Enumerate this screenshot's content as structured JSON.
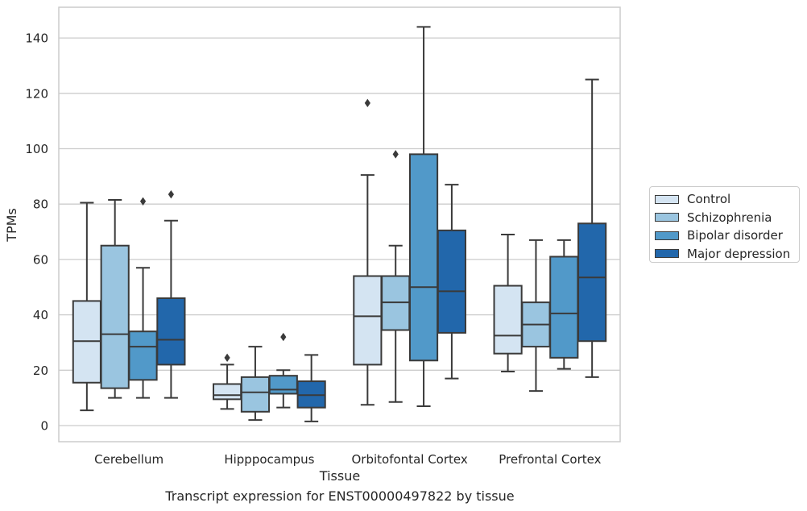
{
  "chart_data": {
    "type": "box",
    "xlabel": "Tissue",
    "ylabel": "TPMs",
    "caption": "Transcript expression for ENST00000497822 by tissue",
    "ylim": [
      -5,
      151
    ],
    "yticks": [
      0,
      20,
      40,
      60,
      80,
      100,
      120,
      140
    ],
    "grid": true,
    "legend_position": "right",
    "categories": [
      "Cerebellum",
      "Hipppocampus",
      "Orbitofontal Cortex",
      "Prefrontal Cortex"
    ],
    "series": [
      {
        "name": "Control",
        "color": "#d4e4f2",
        "boxes": [
          {
            "min": 5.5,
            "q1": 15.5,
            "median": 30.5,
            "q3": 45,
            "max": 80.5,
            "outliers": []
          },
          {
            "min": 6,
            "q1": 9.5,
            "median": 11,
            "q3": 15,
            "max": 22,
            "outliers": [
              24.5
            ]
          },
          {
            "min": 7.5,
            "q1": 22,
            "median": 39.5,
            "q3": 54,
            "max": 90.5,
            "outliers": [
              116.5
            ]
          },
          {
            "min": 19.5,
            "q1": 26,
            "median": 32.5,
            "q3": 50.5,
            "max": 69,
            "outliers": []
          }
        ]
      },
      {
        "name": "Schizophrenia",
        "color": "#9ac5e0",
        "boxes": [
          {
            "min": 10,
            "q1": 13.5,
            "median": 33,
            "q3": 65,
            "max": 81.5,
            "outliers": []
          },
          {
            "min": 2,
            "q1": 5,
            "median": 12,
            "q3": 17.5,
            "max": 28.5,
            "outliers": []
          },
          {
            "min": 8.5,
            "q1": 34.5,
            "median": 44.5,
            "q3": 54,
            "max": 65,
            "outliers": [
              98
            ]
          },
          {
            "min": 12.5,
            "q1": 28.5,
            "median": 36.5,
            "q3": 44.5,
            "max": 67,
            "outliers": []
          }
        ]
      },
      {
        "name": "Bipolar disorder",
        "color": "#5199c9",
        "boxes": [
          {
            "min": 10,
            "q1": 16.5,
            "median": 28.5,
            "q3": 34,
            "max": 57,
            "outliers": [
              81
            ]
          },
          {
            "min": 6.5,
            "q1": 11.5,
            "median": 13,
            "q3": 18,
            "max": 20,
            "outliers": [
              32
            ]
          },
          {
            "min": 7,
            "q1": 23.5,
            "median": 50,
            "q3": 98,
            "max": 144,
            "outliers": []
          },
          {
            "min": 20.5,
            "q1": 24.5,
            "median": 40.5,
            "q3": 61,
            "max": 67,
            "outliers": []
          }
        ]
      },
      {
        "name": "Major depression",
        "color": "#2267ab",
        "boxes": [
          {
            "min": 10,
            "q1": 22,
            "median": 31,
            "q3": 46,
            "max": 74,
            "outliers": [
              83.5
            ]
          },
          {
            "min": 1.5,
            "q1": 6.5,
            "median": 11,
            "q3": 16,
            "max": 25.5,
            "outliers": []
          },
          {
            "min": 17,
            "q1": 33.5,
            "median": 48.5,
            "q3": 70.5,
            "max": 87,
            "outliers": []
          },
          {
            "min": 17.5,
            "q1": 30.5,
            "median": 53.5,
            "q3": 73,
            "max": 125,
            "outliers": []
          }
        ]
      }
    ]
  }
}
